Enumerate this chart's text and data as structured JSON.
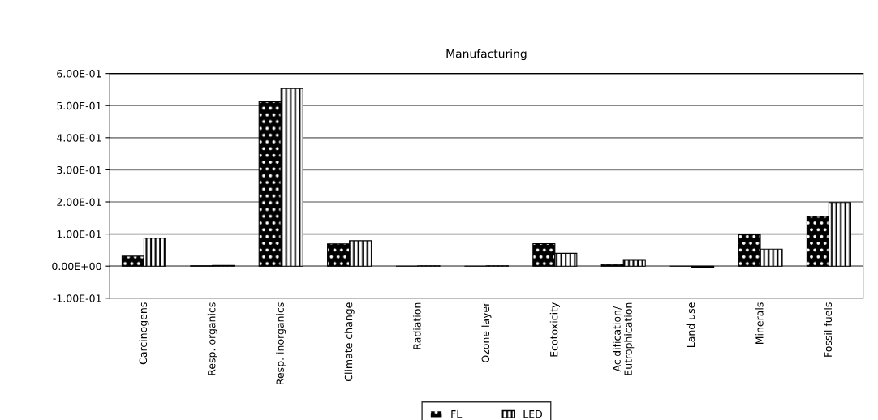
{
  "chart_data": {
    "type": "bar",
    "title": "Manufacturing",
    "categories": [
      "Carcinogens",
      "Resp. organics",
      "Resp. inorganics",
      "Climate change",
      "Radiation",
      "Ozone layer",
      "Ecotoxicity",
      "Acidification/\nEutrophication",
      "Land use",
      "Minerals",
      "Fossil fuels"
    ],
    "series": [
      {
        "name": "FL",
        "color": "#000000",
        "values": [
          0.031,
          0.001,
          0.512,
          0.069,
          0.0,
          0.0,
          0.07,
          0.005,
          0.0,
          0.099,
          0.155
        ]
      },
      {
        "name": "LED",
        "color": "#ffffff",
        "values": [
          0.087,
          0.002,
          0.553,
          0.079,
          0.001,
          0.001,
          0.04,
          0.018,
          -0.003,
          0.053,
          0.198
        ]
      }
    ],
    "ylim": [
      -0.1,
      0.6
    ],
    "yticks": [
      {
        "value": -0.1,
        "label": "-1.00E-01"
      },
      {
        "value": 0,
        "label": "0.00E+00"
      },
      {
        "value": 0.1,
        "label": "1.00E-01"
      },
      {
        "value": 0.2,
        "label": "2.00E-01"
      },
      {
        "value": 0.3,
        "label": "3.00E-01"
      },
      {
        "value": 0.4,
        "label": "4.00E-01"
      },
      {
        "value": 0.5,
        "label": "5.00E-01"
      },
      {
        "value": 0.6,
        "label": "6.00E-01"
      }
    ],
    "grid": "y",
    "legend": "bottom"
  }
}
